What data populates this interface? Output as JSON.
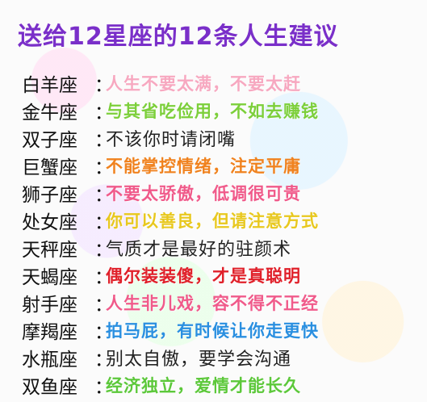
{
  "title": "送给12星座的12条人生建议",
  "rows": [
    {
      "sign": "白羊座",
      "advice": "人生不要太满，不要太赶",
      "color": "#f7a8c0",
      "plain": false
    },
    {
      "sign": "金牛座",
      "advice": "与其省吃俭用，不如去赚钱",
      "color": "#7ccf3a",
      "plain": false
    },
    {
      "sign": "双子座",
      "advice": "不该你时请闭嘴",
      "color": "#222222",
      "plain": true
    },
    {
      "sign": "巨蟹座",
      "advice": "不能掌控情绪，注定平庸",
      "color": "#f0821e",
      "plain": false
    },
    {
      "sign": "狮子座",
      "advice": "不要太骄傲，低调很可贵",
      "color": "#f05a8a",
      "plain": false
    },
    {
      "sign": "处女座",
      "advice": "你可以善良，但请注意方式",
      "color": "#e8c81e",
      "plain": false
    },
    {
      "sign": "天秤座",
      "advice": "气质才是最好的驻颜术",
      "color": "#222222",
      "plain": true
    },
    {
      "sign": "天蝎座",
      "advice": "偶尔装装傻，才是真聪明",
      "color": "#e0202a",
      "plain": false
    },
    {
      "sign": "射手座",
      "advice": "人生非儿戏，容不得不正经",
      "color": "#f05a8a",
      "plain": false
    },
    {
      "sign": "摩羯座",
      "advice": "拍马屁，有时候让你走更快",
      "color": "#2a8fe0",
      "plain": false
    },
    {
      "sign": "水瓶座",
      "advice": "别太自傲，要学会沟通",
      "color": "#222222",
      "plain": true
    },
    {
      "sign": "双鱼座",
      "advice": "经济独立，爱情才能长久",
      "color": "#5cc83a",
      "plain": false
    }
  ],
  "colon": "："
}
